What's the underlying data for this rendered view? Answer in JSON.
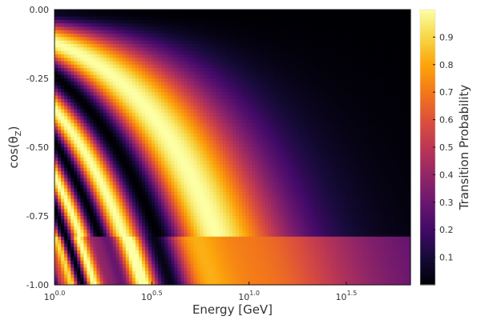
{
  "chart_data": {
    "type": "heatmap",
    "title": "",
    "xlabel": "Energy [GeV]",
    "ylabel": "cos(θ_Z)",
    "xscale": "log10",
    "xlim": [
      0.0,
      1.83
    ],
    "ylim": [
      -1.0,
      0.0
    ],
    "x_ticks": [
      {
        "value": 0.0,
        "base": "10",
        "exp": "0.0"
      },
      {
        "value": 0.5,
        "base": "10",
        "exp": "0.5"
      },
      {
        "value": 1.0,
        "base": "10",
        "exp": "1.0"
      },
      {
        "value": 1.5,
        "base": "10",
        "exp": "1.5"
      }
    ],
    "y_ticks": [
      {
        "value": 0.0,
        "label": "0.00"
      },
      {
        "value": -0.25,
        "label": "-0.25"
      },
      {
        "value": -0.5,
        "label": "-0.50"
      },
      {
        "value": -0.75,
        "label": "-0.75"
      },
      {
        "value": -1.0,
        "label": "-1.00"
      }
    ],
    "colorbar": {
      "label": "Transition Probability",
      "range": [
        0.0,
        1.0
      ],
      "colormap": "inferno",
      "ticks": [
        {
          "value": 0.1,
          "label": "0.1"
        },
        {
          "value": 0.2,
          "label": "0.2"
        },
        {
          "value": 0.3,
          "label": "0.3"
        },
        {
          "value": 0.4,
          "label": "0.4"
        },
        {
          "value": 0.5,
          "label": "0.5"
        },
        {
          "value": 0.6,
          "label": "0.6"
        },
        {
          "value": 0.7,
          "label": "0.7"
        },
        {
          "value": 0.8,
          "label": "0.8"
        },
        {
          "value": 0.9,
          "label": "0.9"
        }
      ]
    },
    "grid": false,
    "legend": "colorbar-right"
  }
}
